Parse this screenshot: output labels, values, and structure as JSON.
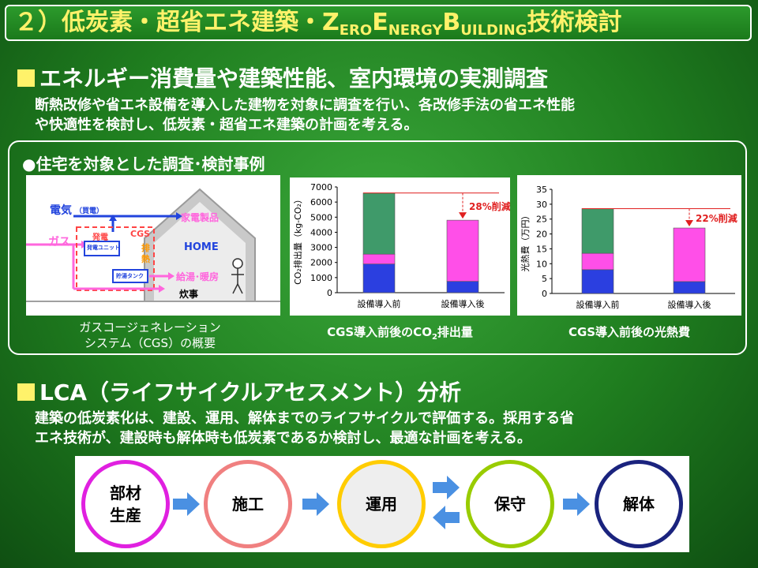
{
  "title": {
    "prefix": "２）低炭素・超省エネ建築・",
    "z": "Z",
    "ero": "ERO",
    "e": "E",
    "nergy": "NERGY",
    "b": "B",
    "uilding": "UILDING",
    "suffix": "技術検討"
  },
  "section1": {
    "heading": "エネルギー消費量や建築性能、室内環境の実測調査",
    "body_line1": "断熱改修や省エネ設備を導入した建物を対象に調査を行い、各改修手法の省エネ性能",
    "body_line2": "や快適性を検討し、低炭素・超省エネ建築の計画を考える。"
  },
  "panel": {
    "heading": "●住宅を対象とした調査･検討事例",
    "diagram": {
      "electricity": "電気",
      "purchased": "（買電）",
      "gas": "ガス",
      "generation": "発電",
      "cgs": "CGS",
      "unit": "発電ユニット",
      "exhaust_heat": "排熱",
      "tank": "貯湯タンク",
      "appliances": "家電製品",
      "home": "HOME",
      "hot_water": "給湯･暖房",
      "cooking": "炊事",
      "caption_line1": "ガスコージェネレーション",
      "caption_line2": "システム（CGS）の概要"
    },
    "caption_co2_pre": "CGS導入前後のCO",
    "caption_co2_sub": "2",
    "caption_co2_post": "排出量",
    "caption_cost": "CGS導入前後の光熱費"
  },
  "chart_data": [
    {
      "type": "bar",
      "stacked": true,
      "categories": [
        "設備導入前",
        "設備導入後"
      ],
      "series": [
        {
          "values": [
            1900,
            750
          ],
          "color": "#2b3fe0"
        },
        {
          "values": [
            650,
            4050
          ],
          "color": "#ff4fe8"
        },
        {
          "values": [
            4050,
            0
          ],
          "color": "#3f9a6a"
        }
      ],
      "totals": [
        6600,
        4800
      ],
      "ylabel": "CO₂排出量（kg-CO₂）",
      "yticks": [
        0,
        1000,
        2000,
        3000,
        4000,
        5000,
        6000,
        7000
      ],
      "ylim": [
        0,
        7000
      ],
      "annotation": "28%削減"
    },
    {
      "type": "bar",
      "stacked": true,
      "categories": [
        "設備導入前",
        "設備導入後"
      ],
      "series": [
        {
          "values": [
            8,
            4
          ],
          "color": "#2b3fe0"
        },
        {
          "values": [
            5.5,
            18
          ],
          "color": "#ff4fe8"
        },
        {
          "values": [
            15,
            0
          ],
          "color": "#3f9a6a"
        }
      ],
      "totals": [
        28.5,
        22
      ],
      "ylabel": "光熱費（万円）",
      "yticks": [
        0,
        5,
        10,
        15,
        20,
        25,
        30,
        35
      ],
      "ylim": [
        0,
        35
      ],
      "annotation": "22%削減"
    }
  ],
  "section2": {
    "heading": "LCA（ライフサイクルアセスメント）分析",
    "body_line1": "建築の低炭素化は、建設、運用、解体までのライフサイクルで評価する。採用する省",
    "body_line2": "エネ技術が、建設時も解体時も低炭素であるか検討し、最適な計画を考える。"
  },
  "lca_steps": [
    {
      "line1": "部材",
      "line2": "生産",
      "color": "#e020e0"
    },
    {
      "line1": "施工",
      "line2": "",
      "color": "#f08080"
    },
    {
      "line1": "運用",
      "line2": "",
      "color": "#ffcc00"
    },
    {
      "line1": "保守",
      "line2": "",
      "color": "#99cc00"
    },
    {
      "line1": "解体",
      "line2": "",
      "color": "#1a237e"
    }
  ],
  "colors": {
    "title_yellow": "#fff26a",
    "arrow_blue": "#4a90e2"
  }
}
